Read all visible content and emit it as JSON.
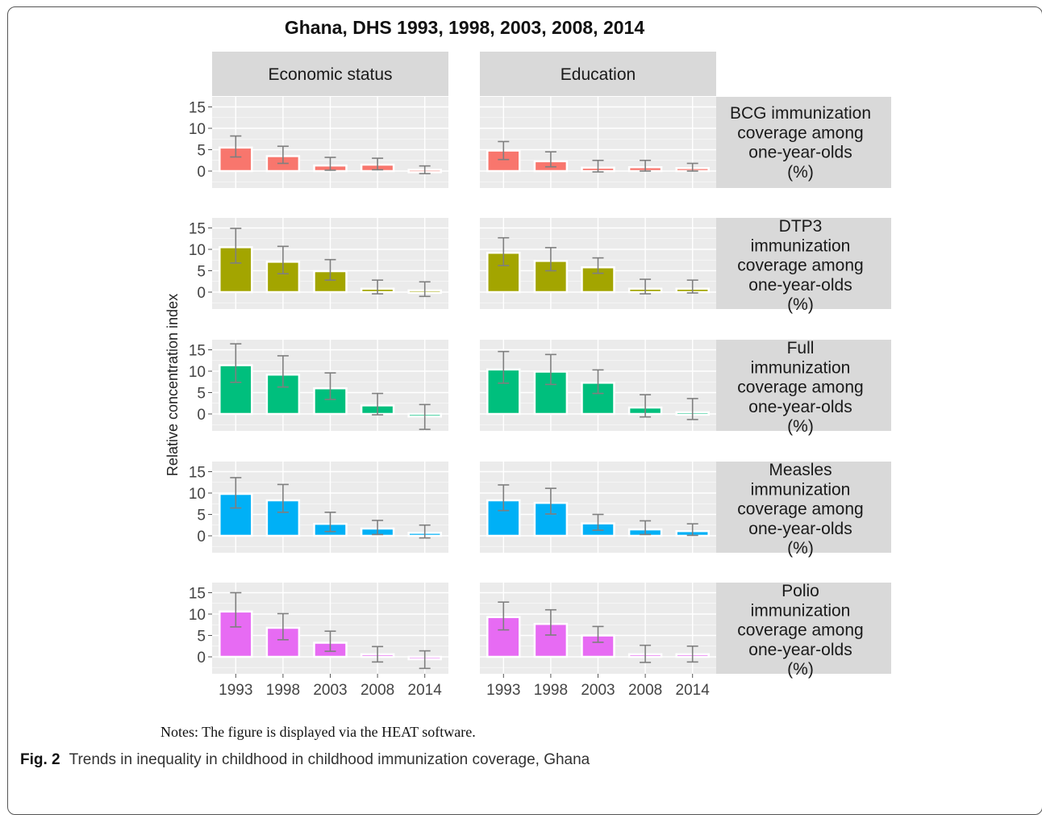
{
  "chart_data": {
    "type": "bar",
    "title": "Ghana, DHS 1993, 1998, 2003, 2008, 2014",
    "ylabel": "Relative concentration index",
    "xlabel": "",
    "categories": [
      "1993",
      "1998",
      "2003",
      "2008",
      "2014"
    ],
    "y_ticks": [
      "15",
      "10",
      "5",
      "0"
    ],
    "ylim": [
      -4,
      18
    ],
    "grid": true,
    "columns": [
      "Economic status",
      "Education"
    ],
    "panels": [
      {
        "indicator_lines": [
          "BCG immunization",
          "coverage among",
          "one-year-olds",
          "(%)"
        ],
        "color": "#F8766D",
        "series": [
          {
            "name": "Economic status",
            "values": [
              5.5,
              3.5,
              1.3,
              1.5,
              0.3
            ],
            "err_low": [
              3.3,
              1.8,
              0.2,
              0.3,
              -0.6
            ],
            "err_high": [
              8.2,
              5.8,
              3.2,
              3.0,
              1.2
            ]
          },
          {
            "name": "Education",
            "values": [
              4.8,
              2.3,
              0.8,
              0.9,
              0.7
            ],
            "err_low": [
              2.7,
              1.0,
              -0.2,
              0.0,
              0.0
            ],
            "err_high": [
              6.9,
              4.5,
              2.5,
              2.5,
              1.8
            ]
          }
        ]
      },
      {
        "indicator_lines": [
          "DTP3",
          "immunization",
          "coverage among",
          "one-year-olds",
          "(%)"
        ],
        "color": "#A3A500",
        "series": [
          {
            "name": "Economic status",
            "values": [
              10.5,
              7.1,
              4.9,
              0.8,
              0.4
            ],
            "err_low": [
              6.8,
              4.3,
              2.8,
              -0.4,
              -1.0
            ],
            "err_high": [
              14.9,
              10.7,
              7.6,
              2.8,
              2.4
            ]
          },
          {
            "name": "Education",
            "values": [
              9.2,
              7.3,
              5.8,
              0.8,
              0.8
            ],
            "err_low": [
              6.2,
              5.0,
              4.4,
              -0.4,
              -0.2
            ],
            "err_high": [
              12.7,
              10.4,
              8.0,
              3.0,
              2.8
            ]
          }
        ]
      },
      {
        "indicator_lines": [
          "Full",
          "immunization",
          "coverage among",
          "one-year-olds",
          "(%)"
        ],
        "color": "#00BF7D",
        "series": [
          {
            "name": "Economic status",
            "values": [
              11.4,
              9.2,
              6.0,
              2.0,
              -0.6
            ],
            "err_low": [
              7.4,
              6.3,
              3.4,
              -0.2,
              -3.6
            ],
            "err_high": [
              16.4,
              13.6,
              9.6,
              4.8,
              2.2
            ]
          },
          {
            "name": "Education",
            "values": [
              10.4,
              9.9,
              7.3,
              1.5,
              0.4
            ],
            "err_low": [
              7.2,
              6.9,
              4.8,
              -0.7,
              -1.3
            ],
            "err_high": [
              14.6,
              13.9,
              10.3,
              4.5,
              3.6
            ]
          }
        ]
      },
      {
        "indicator_lines": [
          "Measles",
          "immunization",
          "coverage among",
          "one-year-olds",
          "(%)"
        ],
        "color": "#00B0F6",
        "series": [
          {
            "name": "Economic status",
            "values": [
              9.8,
              8.3,
              2.8,
              1.7,
              0.7
            ],
            "err_low": [
              6.5,
              5.5,
              1.0,
              0.3,
              -0.5
            ],
            "err_high": [
              13.6,
              12.0,
              5.5,
              3.6,
              2.5
            ]
          },
          {
            "name": "Education",
            "values": [
              8.3,
              7.7,
              2.9,
              1.5,
              1.1
            ],
            "err_low": [
              5.9,
              5.1,
              1.3,
              0.3,
              0.1
            ],
            "err_high": [
              11.9,
              11.1,
              5.0,
              3.5,
              2.8
            ]
          }
        ]
      },
      {
        "indicator_lines": [
          "Polio",
          "immunization",
          "coverage among",
          "one-year-olds",
          "(%)"
        ],
        "color": "#E76BF3",
        "series": [
          {
            "name": "Economic status",
            "values": [
              10.6,
              6.8,
              3.3,
              0.6,
              -0.5
            ],
            "err_low": [
              7.0,
              4.0,
              1.3,
              -1.2,
              -2.7
            ],
            "err_high": [
              15.0,
              10.1,
              6.0,
              2.4,
              1.4
            ]
          },
          {
            "name": "Education",
            "values": [
              9.3,
              7.7,
              5.0,
              0.6,
              0.6
            ],
            "err_low": [
              6.3,
              5.1,
              3.4,
              -1.3,
              -1.2
            ],
            "err_high": [
              12.8,
              11.0,
              7.1,
              2.7,
              2.5
            ]
          }
        ]
      }
    ]
  },
  "notes": "Notes: The figure is displayed via the HEAT software.",
  "caption": {
    "fig_label": "Fig. 2",
    "text": "Trends in inequality in childhood in childhood immunization coverage, Ghana"
  },
  "colors": {
    "panel_bg": "#EBEBEB",
    "strip_bg": "#D9D9D9",
    "grid": "#FFFFFF",
    "errorbar": "#7F7F7F"
  }
}
